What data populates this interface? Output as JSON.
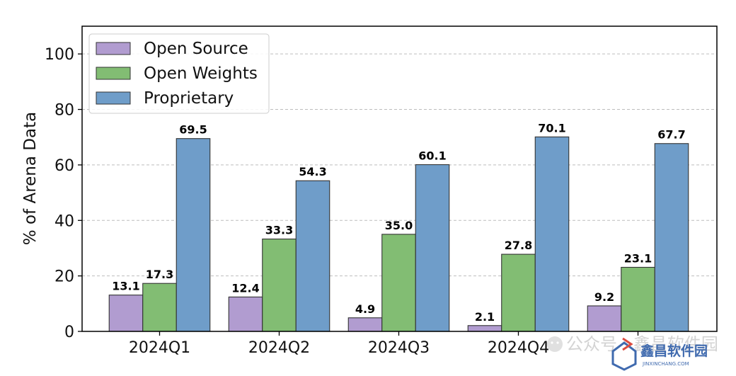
{
  "chart_data": {
    "type": "bar",
    "title": "",
    "xlabel": "",
    "ylabel": "% of Arena Data",
    "ylim": [
      0,
      110
    ],
    "yticks": [
      0,
      20,
      40,
      60,
      80,
      100
    ],
    "grid": "y-dashed",
    "legend_position": "top-left",
    "categories": [
      "2024Q1",
      "2024Q2",
      "2024Q3",
      "2024Q4",
      ""
    ],
    "series": [
      {
        "name": "Open Source",
        "color": "#b19cd0",
        "values": [
          13.1,
          12.4,
          4.9,
          2.1,
          9.2
        ],
        "labels": [
          "13.1",
          "12.4",
          "4.9",
          "2.1",
          "9.2"
        ]
      },
      {
        "name": "Open Weights",
        "color": "#82bd73",
        "values": [
          17.3,
          33.3,
          35.0,
          27.8,
          23.1
        ],
        "labels": [
          "17.3",
          "33.3",
          "35.0",
          "27.8",
          "23.1"
        ]
      },
      {
        "name": "Proprietary",
        "color": "#6f9dc9",
        "values": [
          69.5,
          54.3,
          60.1,
          70.1,
          67.7
        ],
        "labels": [
          "69.5",
          "54.3",
          "60.1",
          "70.1",
          "67.7"
        ]
      }
    ]
  },
  "watermark": {
    "brand": "鑫昌软件园",
    "domain": "JINXINCHANG.COM",
    "wechat_text": "公众号 · 鑫昌软件园"
  }
}
